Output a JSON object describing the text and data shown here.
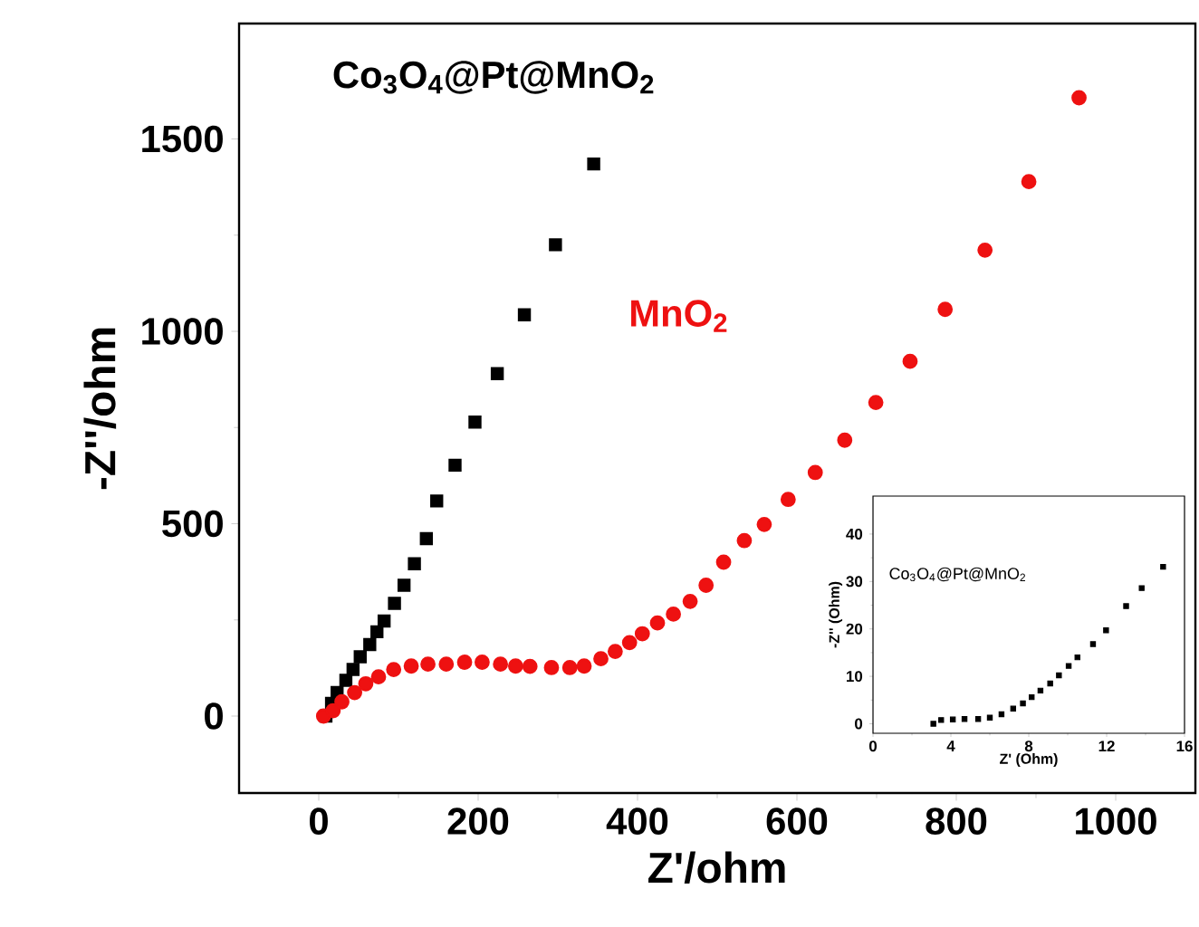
{
  "chart_data": [
    {
      "type": "scatter",
      "xlabel": "Z'/ohm",
      "ylabel": "-Z''/ohm",
      "xlim": [
        -100,
        1100
      ],
      "ylim": [
        -200,
        1800
      ],
      "xticks": [
        0,
        200,
        400,
        600,
        800,
        1000
      ],
      "yticks": [
        0,
        500,
        1000,
        1500
      ],
      "series": [
        {
          "name": "Co$_{3}$O$_{4}$@Pt@MnO$_{2}$",
          "color": "#000000",
          "marker": "square",
          "x": [
            9,
            16,
            23,
            34,
            43,
            52,
            64,
            73,
            82,
            95,
            107,
            120,
            135,
            148,
            171,
            196,
            224,
            258,
            297,
            345
          ],
          "values": [
            0,
            33,
            61,
            93,
            121,
            154,
            186,
            219,
            247,
            293,
            340,
            396,
            461,
            559,
            652,
            764,
            890,
            1043,
            1225,
            1435
          ]
        },
        {
          "name": "MnO$_{2}$",
          "color": "#ee1111",
          "marker": "circle",
          "x": [
            6,
            18,
            29,
            45,
            59,
            75,
            94,
            116,
            137,
            160,
            183,
            205,
            228,
            247,
            265,
            292,
            315,
            333,
            354,
            372,
            390,
            406,
            425,
            445,
            466,
            486,
            508,
            534,
            559,
            589,
            623,
            660,
            699,
            742,
            786,
            836,
            891,
            954
          ],
          "values": [
            0,
            14,
            37,
            61,
            84,
            102,
            121,
            130,
            135,
            135,
            140,
            140,
            135,
            130,
            129,
            126,
            126,
            130,
            149,
            168,
            191,
            214,
            242,
            265,
            298,
            340,
            400,
            456,
            498,
            563,
            633,
            717,
            815,
            922,
            1057,
            1211,
            1389,
            1607
          ]
        }
      ]
    },
    {
      "type": "scatter",
      "xlabel": "Z' (Ohm)",
      "ylabel": "-Z'' (Ohm)",
      "xlim": [
        0,
        16
      ],
      "ylim": [
        -2,
        48
      ],
      "xticks": [
        0,
        4,
        8,
        12,
        16
      ],
      "yticks": [
        0,
        10,
        20,
        30,
        40
      ],
      "series": [
        {
          "name": "Co$_{3}$O$_{4}$@Pt@MnO$_{2}$",
          "color": "#000000",
          "marker": "square",
          "x": [
            3.1,
            3.5,
            4.1,
            4.7,
            5.4,
            6.0,
            6.6,
            7.2,
            7.7,
            8.15,
            8.6,
            9.1,
            9.55,
            10.05,
            10.5,
            11.3,
            11.97,
            13.0,
            13.8,
            14.9
          ],
          "values": [
            0,
            0.8,
            0.9,
            1.0,
            1.0,
            1.3,
            2.0,
            3.2,
            4.3,
            5.6,
            7.0,
            8.5,
            10.2,
            12.2,
            14.0,
            16.8,
            19.7,
            24.8,
            28.6,
            33.1
          ]
        }
      ]
    }
  ]
}
